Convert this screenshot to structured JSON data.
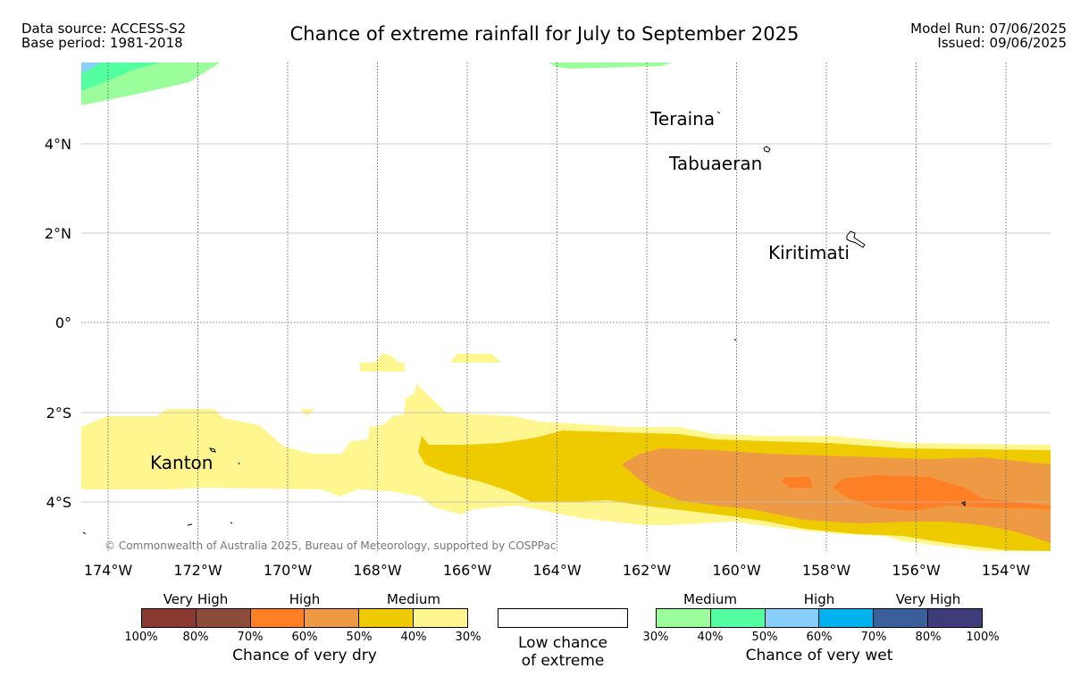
{
  "header": {
    "data_source": "Data source: ACCESS-S2",
    "base_period": "Base period: 1981-2018",
    "title": "Chance of extreme rainfall for July to September 2025",
    "model_run": "Model Run: 07/06/2025",
    "issued": "Issued: 09/06/2025"
  },
  "map": {
    "lon_labels": [
      "174°W",
      "172°W",
      "170°W",
      "168°W",
      "166°W",
      "164°W",
      "162°W",
      "160°W",
      "158°W",
      "156°W",
      "154°W"
    ],
    "lat_labels": [
      "4°N",
      "2°N",
      "0°",
      "2°S",
      "4°S"
    ],
    "places": [
      "Teraina",
      "Tabuaeran",
      "Kiritimati",
      "Kanton"
    ],
    "copyright": "© Commonwealth of Australia 2025, Bureau of Meteorology, supported by COSPPac"
  },
  "legend": {
    "dry": {
      "categories": [
        "Very High",
        "High",
        "Medium"
      ],
      "colors": [
        "#8b3a32",
        "#8b4c3a",
        "#ff7f24",
        "#ee9a45",
        "#eecb00",
        "#fff68f"
      ],
      "ticks": [
        "100%",
        "80%",
        "70%",
        "60%",
        "50%",
        "40%",
        "30%"
      ],
      "caption": "Chance of very dry"
    },
    "low": {
      "line1": "Low chance",
      "line2": "of extreme"
    },
    "wet": {
      "categories": [
        "Medium",
        "High",
        "Very High"
      ],
      "colors": [
        "#9aff9a",
        "#54ff9f",
        "#87cefa",
        "#00b2ee",
        "#3a5f9a",
        "#3d3b78"
      ],
      "ticks": [
        "30%",
        "40%",
        "50%",
        "60%",
        "70%",
        "80%",
        "100%"
      ],
      "caption": "Chance of very wet"
    }
  }
}
